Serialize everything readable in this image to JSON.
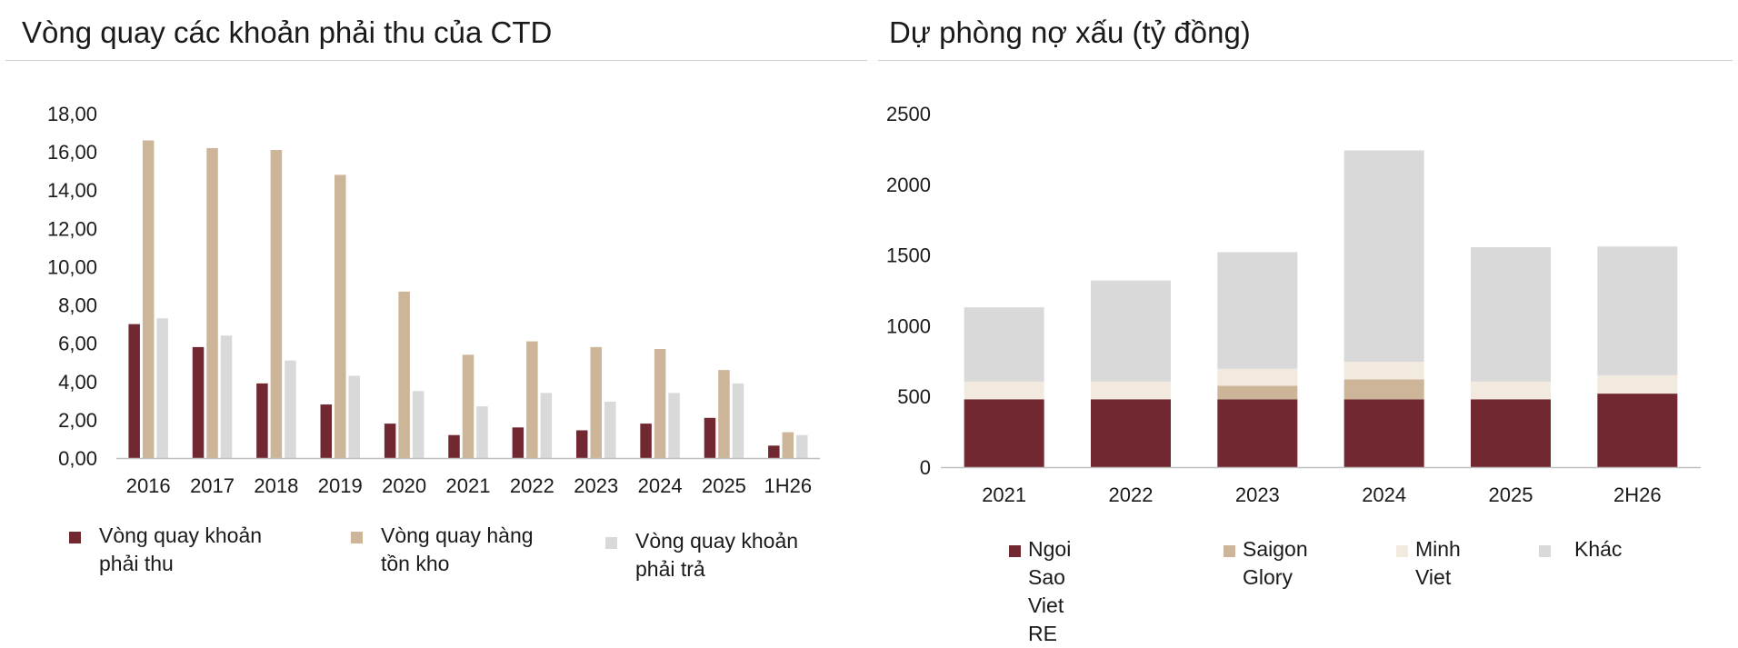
{
  "colors": {
    "maroon": "#722831",
    "tan": "#ccb598",
    "light": "#f2e9df",
    "grey": "#d9d9d9",
    "axis": "#bfbfbf"
  },
  "chart_data": [
    {
      "type": "bar",
      "title": "Vòng quay các khoản phải thu của CTD",
      "categories": [
        "2016",
        "2017",
        "2018",
        "2019",
        "2020",
        "2021",
        "2022",
        "2023",
        "2024",
        "2025",
        "1H26"
      ],
      "series": [
        {
          "name": "Vòng quay khoản phải thu",
          "color": "#722831",
          "values": [
            7.0,
            5.8,
            3.9,
            2.8,
            1.8,
            1.2,
            1.6,
            1.45,
            1.8,
            2.1,
            0.65
          ]
        },
        {
          "name": "Vòng quay hàng tồn kho",
          "color": "#ccb598",
          "values": [
            16.6,
            16.2,
            16.1,
            14.8,
            8.7,
            5.4,
            6.1,
            5.8,
            5.7,
            4.6,
            1.35
          ]
        },
        {
          "name": "Vòng quay khoản phải trả",
          "color": "#d9d9d9",
          "values": [
            7.3,
            6.4,
            5.1,
            4.3,
            3.5,
            2.7,
            3.4,
            2.95,
            3.4,
            3.9,
            1.2
          ]
        }
      ],
      "yticks": [
        "0,00",
        "2,00",
        "4,00",
        "6,00",
        "8,00",
        "10,00",
        "12,00",
        "14,00",
        "16,00",
        "18,00"
      ],
      "ylim": [
        0,
        18
      ],
      "legend": "bottom",
      "grid": false
    },
    {
      "type": "bar",
      "stacked": true,
      "title": "Dự phòng nợ xấu (tỷ đồng)",
      "categories": [
        "2021",
        "2022",
        "2023",
        "2024",
        "2025",
        "2H26"
      ],
      "series": [
        {
          "name": "Ngoi Sao Viet RE",
          "color": "#722831",
          "values": [
            480,
            480,
            480,
            480,
            480,
            520
          ]
        },
        {
          "name": "Saigon Glory",
          "color": "#ccb598",
          "values": [
            0,
            0,
            95,
            140,
            0,
            0
          ]
        },
        {
          "name": "Minh Viet",
          "color": "#f2e9df",
          "values": [
            125,
            125,
            120,
            125,
            125,
            130
          ]
        },
        {
          "name": "Khác",
          "color": "#d9d9d9",
          "values": [
            525,
            715,
            825,
            1495,
            950,
            910
          ]
        }
      ],
      "yticks": [
        "0",
        "500",
        "1000",
        "1500",
        "2000",
        "2500"
      ],
      "ylim": [
        0,
        2500
      ],
      "legend": "bottom",
      "grid": false
    }
  ]
}
